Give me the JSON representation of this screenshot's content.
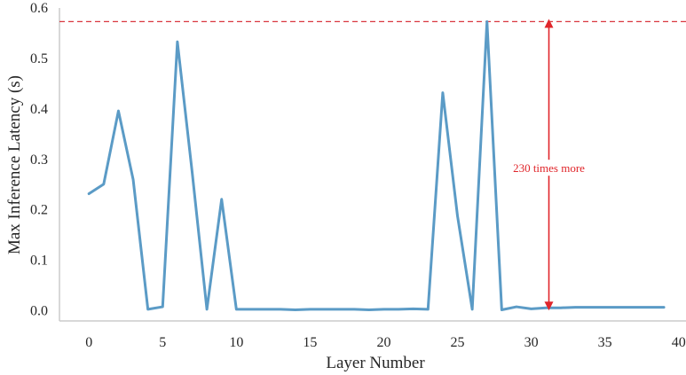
{
  "chart_data": {
    "type": "line",
    "xlabel": "Layer Number",
    "ylabel": "Max Inference Latency (s)",
    "xlim": [
      -2,
      40.5
    ],
    "ylim": [
      -0.02,
      0.6
    ],
    "x_ticks": [
      0,
      5,
      10,
      15,
      20,
      25,
      30,
      35,
      40
    ],
    "y_ticks": [
      0.0,
      0.1,
      0.2,
      0.3,
      0.4,
      0.5,
      0.6
    ],
    "y_tick_labels": [
      "0.0",
      "0.1",
      "0.2",
      "0.3",
      "0.4",
      "0.5",
      "0.6"
    ],
    "grid": false,
    "series": [
      {
        "color": "#5b9bc6",
        "x": [
          0,
          1,
          2,
          3,
          4,
          5,
          6,
          7,
          8,
          9,
          10,
          11,
          12,
          13,
          14,
          15,
          16,
          17,
          18,
          19,
          20,
          21,
          22,
          23,
          24,
          25,
          26,
          27,
          28,
          29,
          30,
          31,
          32,
          33,
          34,
          35,
          36,
          37,
          38,
          39
        ],
        "y": [
          0.232,
          0.251,
          0.396,
          0.26,
          0.003,
          0.008,
          0.533,
          0.275,
          0.003,
          0.221,
          0.003,
          0.003,
          0.003,
          0.003,
          0.002,
          0.003,
          0.003,
          0.003,
          0.003,
          0.002,
          0.003,
          0.003,
          0.004,
          0.003,
          0.432,
          0.188,
          0.003,
          0.573,
          0.002,
          0.008,
          0.004,
          0.006,
          0.006,
          0.007,
          0.007,
          0.007,
          0.007,
          0.007,
          0.007,
          0.007
        ]
      }
    ],
    "reference_line": {
      "y": 0.573,
      "color": "#d9363e",
      "style": "dashed"
    },
    "annotation": {
      "text": "230 times more",
      "x": 31.2,
      "y_top": 0.573,
      "y_bottom": 0.006,
      "text_y": 0.28,
      "color": "#e0262b"
    }
  }
}
